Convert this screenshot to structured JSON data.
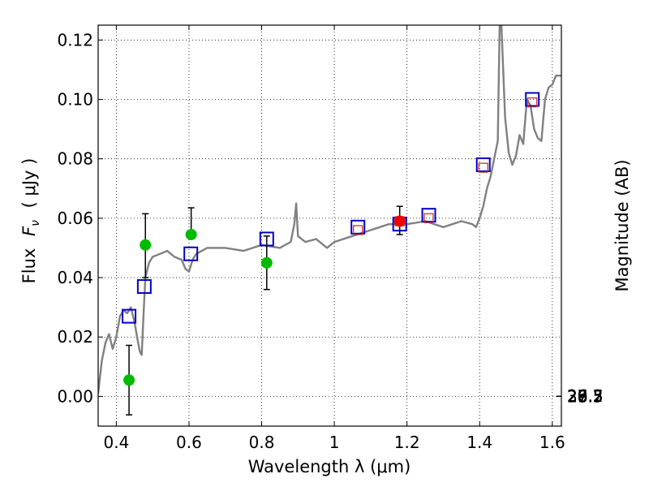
{
  "chart_data": {
    "type": "scatter",
    "xlabel": "Wavelength  λ (μm)",
    "ylabel_prefix": "Flux",
    "ylabel_var": "F",
    "ylabel_sub": "ν",
    "ylabel_unit": "( μJy )",
    "ylabel_right": "Magnitude (AB)",
    "xlim": [
      0.35,
      1.625
    ],
    "ylim": [
      -0.01,
      0.125
    ],
    "grid": true,
    "x_ticks": [
      0.4,
      0.6,
      0.8,
      1.0,
      1.2,
      1.4,
      1.6
    ],
    "x_tick_labels": [
      "0.4",
      "0.6",
      "0.8",
      "1",
      "1.2",
      "1.4",
      "1.6"
    ],
    "y_ticks": [
      0.0,
      0.02,
      0.04,
      0.06,
      0.08,
      0.1,
      0.12
    ],
    "y_tick_labels": [
      "0.00",
      "0.02",
      "0.04",
      "0.06",
      "0.08",
      "0.10",
      "0.12"
    ],
    "right_ticks": [
      {
        "label": "26.2",
        "mag": 26.2
      },
      {
        "label": "26.3",
        "mag": 26.3
      },
      {
        "label": "26.5",
        "mag": 26.5
      },
      {
        "label": "26.7",
        "mag": 26.7
      },
      {
        "label": "27",
        "mag": 27.0
      },
      {
        "label": "27.2",
        "mag": 27.2
      },
      {
        "label": "27.5",
        "mag": 27.5
      },
      {
        "label": "28",
        "mag": 28.0
      },
      {
        "label": "28.5",
        "mag": 28.5
      },
      {
        "label": "29",
        "mag": 29.0
      },
      {
        "label": "30",
        "mag": 30.0
      }
    ],
    "series": [
      {
        "name": "model spectrum",
        "kind": "line",
        "color": "#808080",
        "x": [
          0.35,
          0.36,
          0.37,
          0.38,
          0.39,
          0.4,
          0.41,
          0.42,
          0.43,
          0.44,
          0.45,
          0.46,
          0.465,
          0.47,
          0.475,
          0.48,
          0.49,
          0.5,
          0.52,
          0.54,
          0.56,
          0.58,
          0.59,
          0.6,
          0.61,
          0.62,
          0.65,
          0.7,
          0.75,
          0.8,
          0.85,
          0.88,
          0.89,
          0.895,
          0.9,
          0.92,
          0.95,
          0.98,
          1.0,
          1.05,
          1.1,
          1.15,
          1.2,
          1.25,
          1.3,
          1.35,
          1.38,
          1.39,
          1.4,
          1.41,
          1.42,
          1.43,
          1.44,
          1.45,
          1.455,
          1.46,
          1.47,
          1.48,
          1.49,
          1.5,
          1.51,
          1.52,
          1.53,
          1.54,
          1.55,
          1.56,
          1.57,
          1.58,
          1.59,
          1.6,
          1.61,
          1.625
        ],
        "y": [
          0.001,
          0.012,
          0.018,
          0.021,
          0.016,
          0.02,
          0.027,
          0.029,
          0.028,
          0.03,
          0.025,
          0.018,
          0.015,
          0.014,
          0.028,
          0.04,
          0.045,
          0.047,
          0.048,
          0.049,
          0.047,
          0.046,
          0.043,
          0.042,
          0.046,
          0.048,
          0.05,
          0.05,
          0.049,
          0.051,
          0.05,
          0.052,
          0.058,
          0.065,
          0.054,
          0.052,
          0.053,
          0.05,
          0.052,
          0.054,
          0.056,
          0.058,
          0.058,
          0.059,
          0.057,
          0.059,
          0.058,
          0.057,
          0.06,
          0.064,
          0.07,
          0.074,
          0.08,
          0.086,
          0.125,
          0.125,
          0.094,
          0.082,
          0.078,
          0.081,
          0.088,
          0.085,
          0.1,
          0.098,
          0.09,
          0.087,
          0.086,
          0.1,
          0.104,
          0.105,
          0.108,
          0.108
        ]
      },
      {
        "name": "model photometry",
        "kind": "marker",
        "marker": "open-square",
        "color": "#0000cc",
        "x": [
          0.435,
          0.477,
          0.605,
          0.814,
          1.065,
          1.18,
          1.26,
          1.41,
          1.545
        ],
        "y": [
          0.027,
          0.037,
          0.048,
          0.053,
          0.057,
          0.058,
          0.061,
          0.078,
          0.1
        ]
      },
      {
        "name": "observed photometry (inner squares)",
        "kind": "marker",
        "marker": "open-square-small",
        "color": "#cc3333",
        "x": [
          1.065,
          1.18,
          1.26,
          1.41,
          1.545
        ],
        "y": [
          0.056,
          0.059,
          0.06,
          0.077,
          0.099
        ]
      },
      {
        "name": "observed (green points)",
        "kind": "marker",
        "marker": "filled-circle",
        "color": "#00bb00",
        "x": [
          0.435,
          0.48,
          0.606,
          0.814
        ],
        "y": [
          0.0055,
          0.051,
          0.0545,
          0.045
        ],
        "yerr_low": [
          0.0117,
          0.011,
          0.0,
          0.009
        ],
        "yerr_high": [
          0.0117,
          0.0105,
          0.009,
          0.009
        ]
      },
      {
        "name": "observed (red point)",
        "kind": "marker",
        "marker": "filled-circle",
        "color": "#ee0000",
        "x": [
          1.18
        ],
        "y": [
          0.059
        ],
        "yerr_low": [
          0.0045
        ],
        "yerr_high": [
          0.005
        ]
      }
    ]
  }
}
